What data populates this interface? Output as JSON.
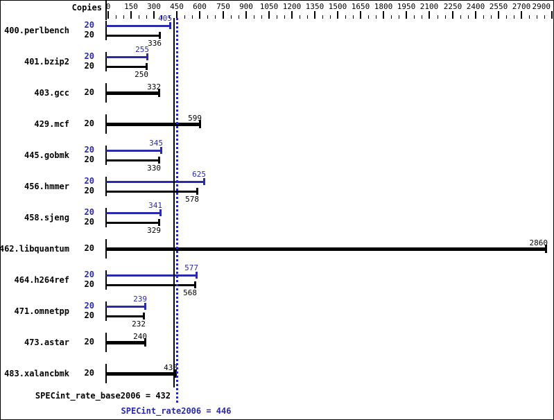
{
  "chart_data": {
    "type": "bar",
    "orientation": "horizontal",
    "copies_header": "Copies",
    "xlim": [
      0,
      2900
    ],
    "axis_major_ticks": [
      0,
      150,
      300,
      450,
      600,
      750,
      900,
      1050,
      1200,
      1350,
      1500,
      1650,
      1800,
      1950,
      2100,
      2250,
      2400,
      2550,
      2700,
      2900
    ],
    "axis_minor_step": 50,
    "grid": false,
    "legend": false,
    "colors": {
      "base": "#000000",
      "peak": "#2a2aad"
    },
    "benchmarks": [
      {
        "name": "400.perlbench",
        "peak_copies": 20,
        "peak": 405,
        "base_copies": 20,
        "base": 336
      },
      {
        "name": "401.bzip2",
        "peak_copies": 20,
        "peak": 255,
        "base_copies": 20,
        "base": 250
      },
      {
        "name": "403.gcc",
        "peak_copies": null,
        "peak": null,
        "base_copies": 20,
        "base": 332
      },
      {
        "name": "429.mcf",
        "peak_copies": null,
        "peak": null,
        "base_copies": 20,
        "base": 599
      },
      {
        "name": "445.gobmk",
        "peak_copies": 20,
        "peak": 345,
        "base_copies": 20,
        "base": 330
      },
      {
        "name": "456.hmmer",
        "peak_copies": 20,
        "peak": 625,
        "base_copies": 20,
        "base": 578
      },
      {
        "name": "458.sjeng",
        "peak_copies": 20,
        "peak": 341,
        "base_copies": 20,
        "base": 329
      },
      {
        "name": "462.libquantum",
        "peak_copies": null,
        "peak": null,
        "base_copies": 20,
        "base": 2860
      },
      {
        "name": "464.h264ref",
        "peak_copies": 20,
        "peak": 577,
        "base_copies": 20,
        "base": 568
      },
      {
        "name": "471.omnetpp",
        "peak_copies": 20,
        "peak": 239,
        "base_copies": 20,
        "base": 232
      },
      {
        "name": "473.astar",
        "peak_copies": null,
        "peak": null,
        "base_copies": 20,
        "base": 240
      },
      {
        "name": "483.xalancbmk",
        "peak_copies": null,
        "peak": null,
        "base_copies": 20,
        "base": 438
      }
    ],
    "summary": {
      "base": {
        "label": "SPECint_rate_base2006 = 432",
        "value": 432
      },
      "peak": {
        "label": "SPECint_rate2006 = 446",
        "value": 446
      }
    }
  }
}
